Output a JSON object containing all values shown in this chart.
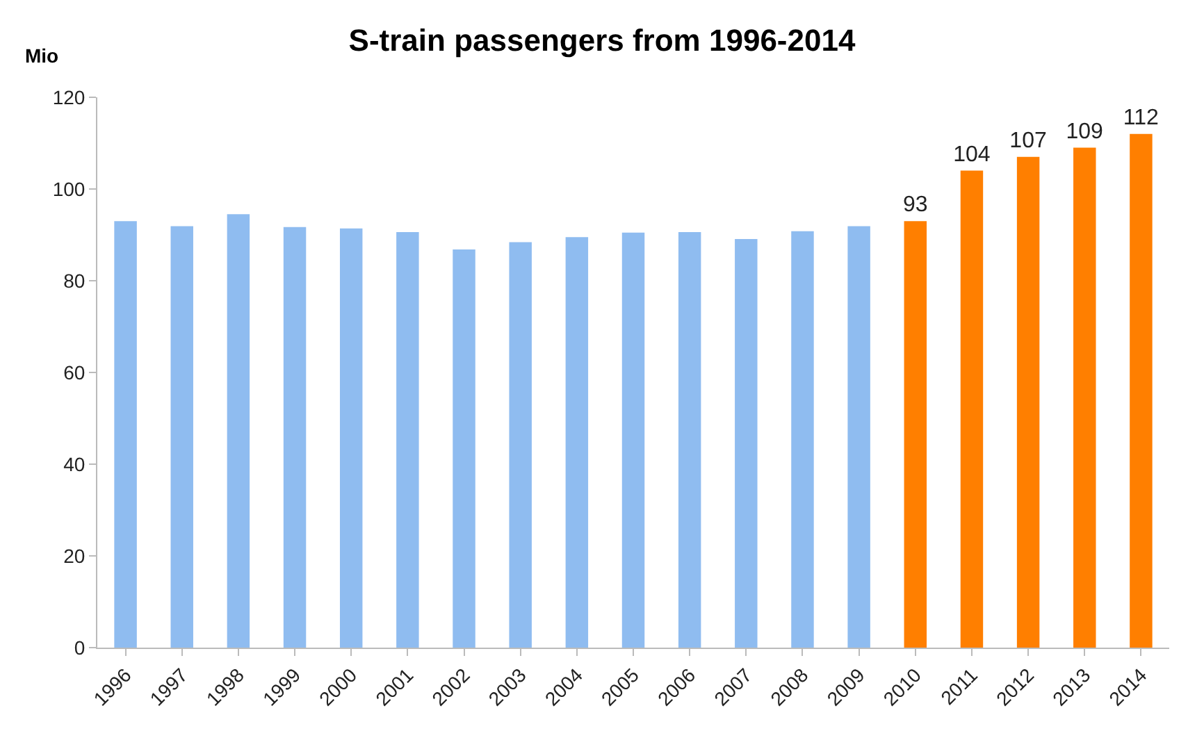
{
  "chart_data": {
    "type": "bar",
    "title": "S-train passengers from 1996-2014",
    "ylabel": "Mio",
    "categories": [
      "1996",
      "1997",
      "1998",
      "1999",
      "2000",
      "2001",
      "2002",
      "2003",
      "2004",
      "2005",
      "2006",
      "2007",
      "2008",
      "2009",
      "2010",
      "2011",
      "2012",
      "2013",
      "2014"
    ],
    "values": [
      93.0,
      91.9,
      94.5,
      91.7,
      91.4,
      90.6,
      86.8,
      88.4,
      89.5,
      90.5,
      90.6,
      89.1,
      90.8,
      91.9,
      93,
      104,
      107,
      109,
      112
    ],
    "value_labels": [
      null,
      null,
      null,
      null,
      null,
      null,
      null,
      null,
      null,
      null,
      null,
      null,
      null,
      null,
      "93",
      "104",
      "107",
      "109",
      "112"
    ],
    "colors": [
      "#8fbcf0",
      "#8fbcf0",
      "#8fbcf0",
      "#8fbcf0",
      "#8fbcf0",
      "#8fbcf0",
      "#8fbcf0",
      "#8fbcf0",
      "#8fbcf0",
      "#8fbcf0",
      "#8fbcf0",
      "#8fbcf0",
      "#8fbcf0",
      "#8fbcf0",
      "#ff7f00",
      "#ff7f00",
      "#ff7f00",
      "#ff7f00",
      "#ff7f00"
    ],
    "ylim": [
      0,
      120
    ],
    "yticks": [
      0,
      20,
      40,
      60,
      80,
      100,
      120
    ],
    "legend": false
  }
}
